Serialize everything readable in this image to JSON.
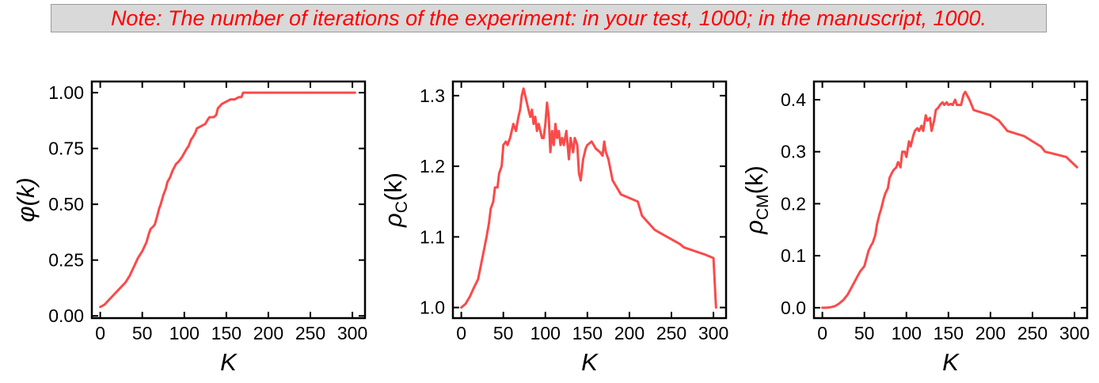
{
  "note": {
    "text": "Note: The number of iterations of the experiment: in your test, 1000; in the manuscript, 1000.",
    "color": "#ff0000",
    "background": "#d9d9d9"
  },
  "series_color": "#fa4a4a",
  "chart_data": [
    {
      "type": "line",
      "xlabel": "K",
      "ylabel": "φ(k)",
      "xlim": [
        -10,
        315
      ],
      "ylim": [
        -0.01,
        1.05
      ],
      "xticks": [
        0,
        50,
        100,
        150,
        200,
        250,
        300
      ],
      "xtick_labels": [
        "0",
        "50",
        "100",
        "150",
        "200",
        "250",
        "300"
      ],
      "yticks": [
        0,
        0.25,
        0.5,
        0.75,
        1.0
      ],
      "ytick_labels": [
        "0.00",
        "0.25",
        "0.50",
        "0.75",
        "1.00"
      ],
      "series": [
        {
          "x": [
            0,
            5,
            10,
            20,
            30,
            35,
            40,
            45,
            50,
            55,
            58,
            60,
            63,
            65,
            68,
            70,
            72,
            75,
            78,
            80,
            83,
            86,
            90,
            93,
            95,
            97,
            100,
            103,
            105,
            108,
            110,
            113,
            115,
            120,
            125,
            128,
            130,
            135,
            138,
            140,
            145,
            150,
            155,
            160,
            165,
            168,
            170,
            200,
            250,
            300,
            303
          ],
          "y": [
            0.04,
            0.05,
            0.07,
            0.11,
            0.15,
            0.18,
            0.22,
            0.26,
            0.29,
            0.33,
            0.37,
            0.39,
            0.4,
            0.41,
            0.45,
            0.48,
            0.5,
            0.54,
            0.57,
            0.6,
            0.62,
            0.65,
            0.68,
            0.69,
            0.7,
            0.71,
            0.73,
            0.75,
            0.76,
            0.79,
            0.8,
            0.82,
            0.84,
            0.85,
            0.86,
            0.88,
            0.89,
            0.89,
            0.9,
            0.93,
            0.95,
            0.96,
            0.97,
            0.97,
            0.98,
            0.98,
            1.0,
            1.0,
            1.0,
            1.0,
            1.0
          ]
        }
      ]
    },
    {
      "type": "line",
      "xlabel": "K",
      "ylabel": "ρC(k)",
      "ylabel_main": "ρ",
      "ylabel_sub": "C",
      "ylabel_tail": "(k)",
      "xlim": [
        -10,
        315
      ],
      "ylim": [
        0.985,
        1.32
      ],
      "xticks": [
        0,
        50,
        100,
        150,
        200,
        250,
        300
      ],
      "xtick_labels": [
        "0",
        "50",
        "100",
        "150",
        "200",
        "250",
        "300"
      ],
      "yticks": [
        1.0,
        1.1,
        1.2,
        1.3
      ],
      "ytick_labels": [
        "1.0",
        "1.1",
        "1.2",
        "1.3"
      ],
      "series": [
        {
          "x": [
            0,
            5,
            10,
            15,
            20,
            25,
            30,
            33,
            35,
            38,
            40,
            43,
            45,
            48,
            50,
            53,
            55,
            58,
            60,
            62,
            65,
            68,
            70,
            72,
            74,
            76,
            78,
            80,
            82,
            84,
            86,
            88,
            90,
            92,
            94,
            96,
            98,
            100,
            102,
            104,
            106,
            108,
            110,
            112,
            114,
            116,
            118,
            120,
            122,
            125,
            128,
            130,
            133,
            135,
            138,
            140,
            142,
            145,
            148,
            150,
            155,
            160,
            165,
            168,
            170,
            172,
            175,
            180,
            190,
            200,
            210,
            215,
            230,
            245,
            260,
            265,
            290,
            300,
            303
          ],
          "y": [
            1.0,
            1.005,
            1.015,
            1.028,
            1.04,
            1.07,
            1.1,
            1.12,
            1.14,
            1.15,
            1.17,
            1.17,
            1.19,
            1.2,
            1.23,
            1.235,
            1.23,
            1.24,
            1.25,
            1.26,
            1.25,
            1.27,
            1.28,
            1.3,
            1.31,
            1.3,
            1.29,
            1.28,
            1.27,
            1.28,
            1.26,
            1.27,
            1.25,
            1.26,
            1.25,
            1.24,
            1.24,
            1.26,
            1.29,
            1.27,
            1.22,
            1.25,
            1.23,
            1.26,
            1.24,
            1.25,
            1.23,
            1.24,
            1.23,
            1.25,
            1.21,
            1.24,
            1.22,
            1.24,
            1.23,
            1.19,
            1.18,
            1.21,
            1.225,
            1.23,
            1.235,
            1.225,
            1.22,
            1.215,
            1.235,
            1.22,
            1.21,
            1.18,
            1.16,
            1.155,
            1.15,
            1.13,
            1.11,
            1.1,
            1.09,
            1.085,
            1.075,
            1.07,
            1.0
          ]
        }
      ]
    },
    {
      "type": "line",
      "xlabel": "K",
      "ylabel": "ρCM(k)",
      "ylabel_main": "ρ",
      "ylabel_sub": "CM",
      "ylabel_tail": "(k)",
      "xlim": [
        -10,
        315
      ],
      "ylim": [
        -0.02,
        0.435
      ],
      "xticks": [
        0,
        50,
        100,
        150,
        200,
        250,
        300
      ],
      "xtick_labels": [
        "0",
        "50",
        "100",
        "150",
        "200",
        "250",
        "300"
      ],
      "yticks": [
        0,
        0.1,
        0.2,
        0.3,
        0.4
      ],
      "ytick_labels": [
        "0.0",
        "0.1",
        "0.2",
        "0.3",
        "0.4"
      ],
      "series": [
        {
          "x": [
            0,
            5,
            10,
            15,
            20,
            25,
            30,
            35,
            40,
            45,
            50,
            55,
            58,
            60,
            63,
            65,
            68,
            70,
            73,
            75,
            78,
            80,
            83,
            85,
            88,
            90,
            93,
            95,
            98,
            100,
            103,
            105,
            108,
            110,
            113,
            115,
            118,
            120,
            123,
            125,
            128,
            130,
            133,
            135,
            138,
            140,
            143,
            145,
            148,
            150,
            153,
            155,
            158,
            160,
            163,
            165,
            168,
            170,
            175,
            180,
            200,
            210,
            220,
            240,
            250,
            260,
            265,
            290,
            303
          ],
          "y": [
            0.0,
            0.0,
            0.001,
            0.003,
            0.008,
            0.015,
            0.025,
            0.04,
            0.055,
            0.07,
            0.08,
            0.11,
            0.12,
            0.125,
            0.14,
            0.16,
            0.18,
            0.19,
            0.21,
            0.22,
            0.23,
            0.25,
            0.26,
            0.265,
            0.27,
            0.28,
            0.27,
            0.3,
            0.3,
            0.29,
            0.32,
            0.31,
            0.33,
            0.34,
            0.345,
            0.34,
            0.35,
            0.34,
            0.37,
            0.36,
            0.365,
            0.34,
            0.36,
            0.38,
            0.385,
            0.39,
            0.395,
            0.39,
            0.395,
            0.39,
            0.392,
            0.39,
            0.4,
            0.39,
            0.39,
            0.39,
            0.41,
            0.415,
            0.4,
            0.38,
            0.37,
            0.36,
            0.34,
            0.33,
            0.32,
            0.31,
            0.3,
            0.29,
            0.27
          ]
        }
      ]
    }
  ]
}
